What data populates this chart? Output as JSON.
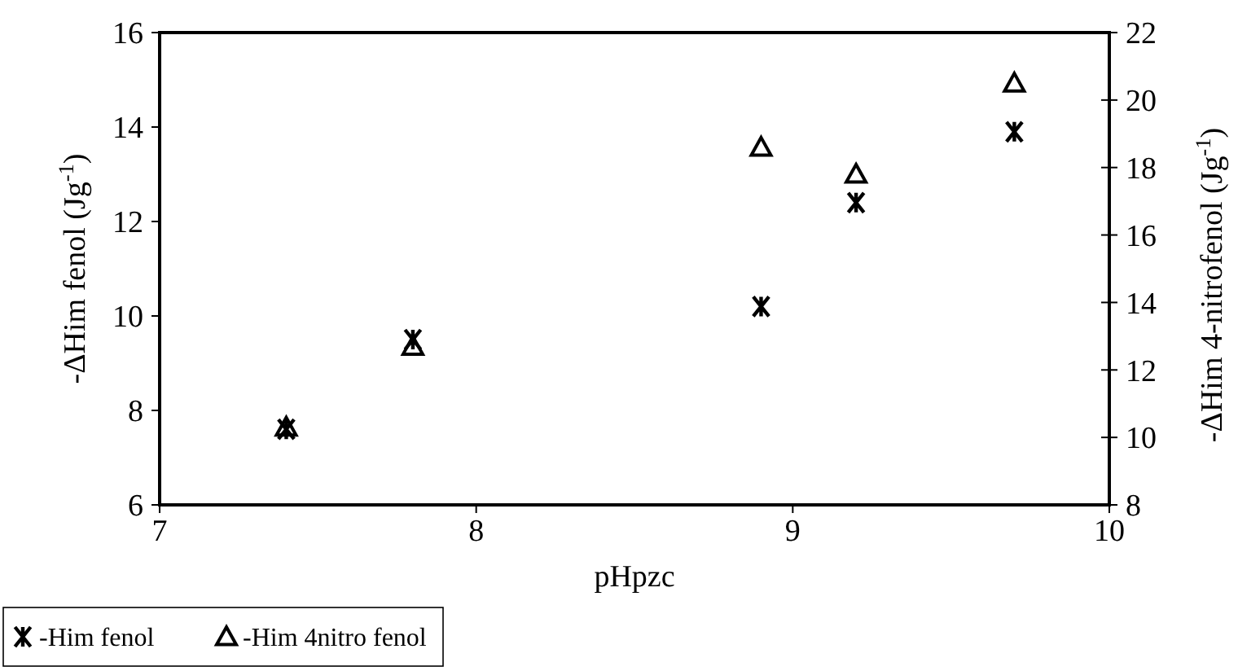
{
  "chart_data": {
    "type": "scatter",
    "xlabel": "pHpzc",
    "ylabel": "-ΔHim fenol (Jg$^{-1}$)",
    "y2label": "-ΔHim 4-nitrofenol (Jg$^{-1}$)",
    "xlim": [
      7,
      10
    ],
    "xticks": [
      7,
      8,
      9,
      10
    ],
    "ylim": [
      6,
      16
    ],
    "yticks": [
      6,
      8,
      10,
      12,
      14,
      16
    ],
    "y2lim": [
      8,
      22
    ],
    "y2ticks": [
      8,
      10,
      12,
      14,
      16,
      18,
      20,
      22
    ],
    "grid": false,
    "legend": "bottom left",
    "series": [
      {
        "name": "-Him fenol",
        "color": "#000000",
        "marker": "cross",
        "x": [
          7.4,
          7.8,
          8.9,
          9.2,
          9.7
        ],
        "values": [
          7.6,
          9.5,
          10.2,
          12.4,
          13.9
        ]
      },
      {
        "name": "-Him 4nitro fenol",
        "color": "#000000",
        "marker": "triangle",
        "axis": "y2",
        "x": [
          7.4,
          7.8,
          8.9,
          9.2,
          9.7
        ],
        "values": [
          10.3,
          12.7,
          18.6,
          17.8,
          20.5
        ]
      }
    ]
  }
}
